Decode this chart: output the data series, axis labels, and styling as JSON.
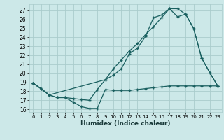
{
  "title": "",
  "xlabel": "Humidex (Indice chaleur)",
  "bg_color": "#cce8e8",
  "grid_color": "#aacccc",
  "line_color": "#1a6060",
  "xlim": [
    -0.5,
    23.5
  ],
  "ylim": [
    15.7,
    27.7
  ],
  "xticks": [
    0,
    1,
    2,
    3,
    4,
    5,
    6,
    7,
    8,
    9,
    10,
    11,
    12,
    13,
    14,
    15,
    16,
    17,
    18,
    19,
    20,
    21,
    22,
    23
  ],
  "yticks": [
    16,
    17,
    18,
    19,
    20,
    21,
    22,
    23,
    24,
    25,
    26,
    27
  ],
  "line1_x": [
    0,
    1,
    2,
    3,
    4,
    5,
    6,
    7,
    8,
    9,
    10,
    11,
    12,
    13,
    14,
    15,
    16,
    17,
    18,
    19,
    20,
    21,
    22,
    23
  ],
  "line1_y": [
    18.9,
    18.3,
    17.6,
    17.3,
    17.3,
    16.8,
    16.3,
    16.1,
    16.1,
    18.2,
    18.1,
    18.1,
    18.1,
    18.2,
    18.3,
    18.4,
    18.5,
    18.6,
    18.6,
    18.6,
    18.6,
    18.6,
    18.6,
    18.6
  ],
  "line2_x": [
    0,
    1,
    2,
    3,
    4,
    5,
    6,
    7,
    8,
    9,
    10,
    11,
    12,
    13,
    14,
    15,
    16,
    17,
    18,
    19,
    20,
    21,
    22,
    23
  ],
  "line2_y": [
    18.9,
    18.3,
    17.6,
    17.3,
    17.3,
    17.2,
    17.1,
    17.0,
    18.2,
    19.3,
    19.8,
    20.5,
    22.2,
    22.8,
    24.1,
    26.2,
    26.5,
    27.2,
    27.2,
    26.6,
    25.0,
    21.7,
    20.1,
    18.6
  ],
  "line3_x": [
    0,
    2,
    9,
    10,
    11,
    12,
    13,
    14,
    15,
    16,
    17,
    18,
    19,
    20,
    21,
    22,
    23
  ],
  "line3_y": [
    18.9,
    17.6,
    19.3,
    20.5,
    21.5,
    22.5,
    23.3,
    24.3,
    25.2,
    26.2,
    27.2,
    26.3,
    26.6,
    25.0,
    21.7,
    20.1,
    18.6
  ]
}
